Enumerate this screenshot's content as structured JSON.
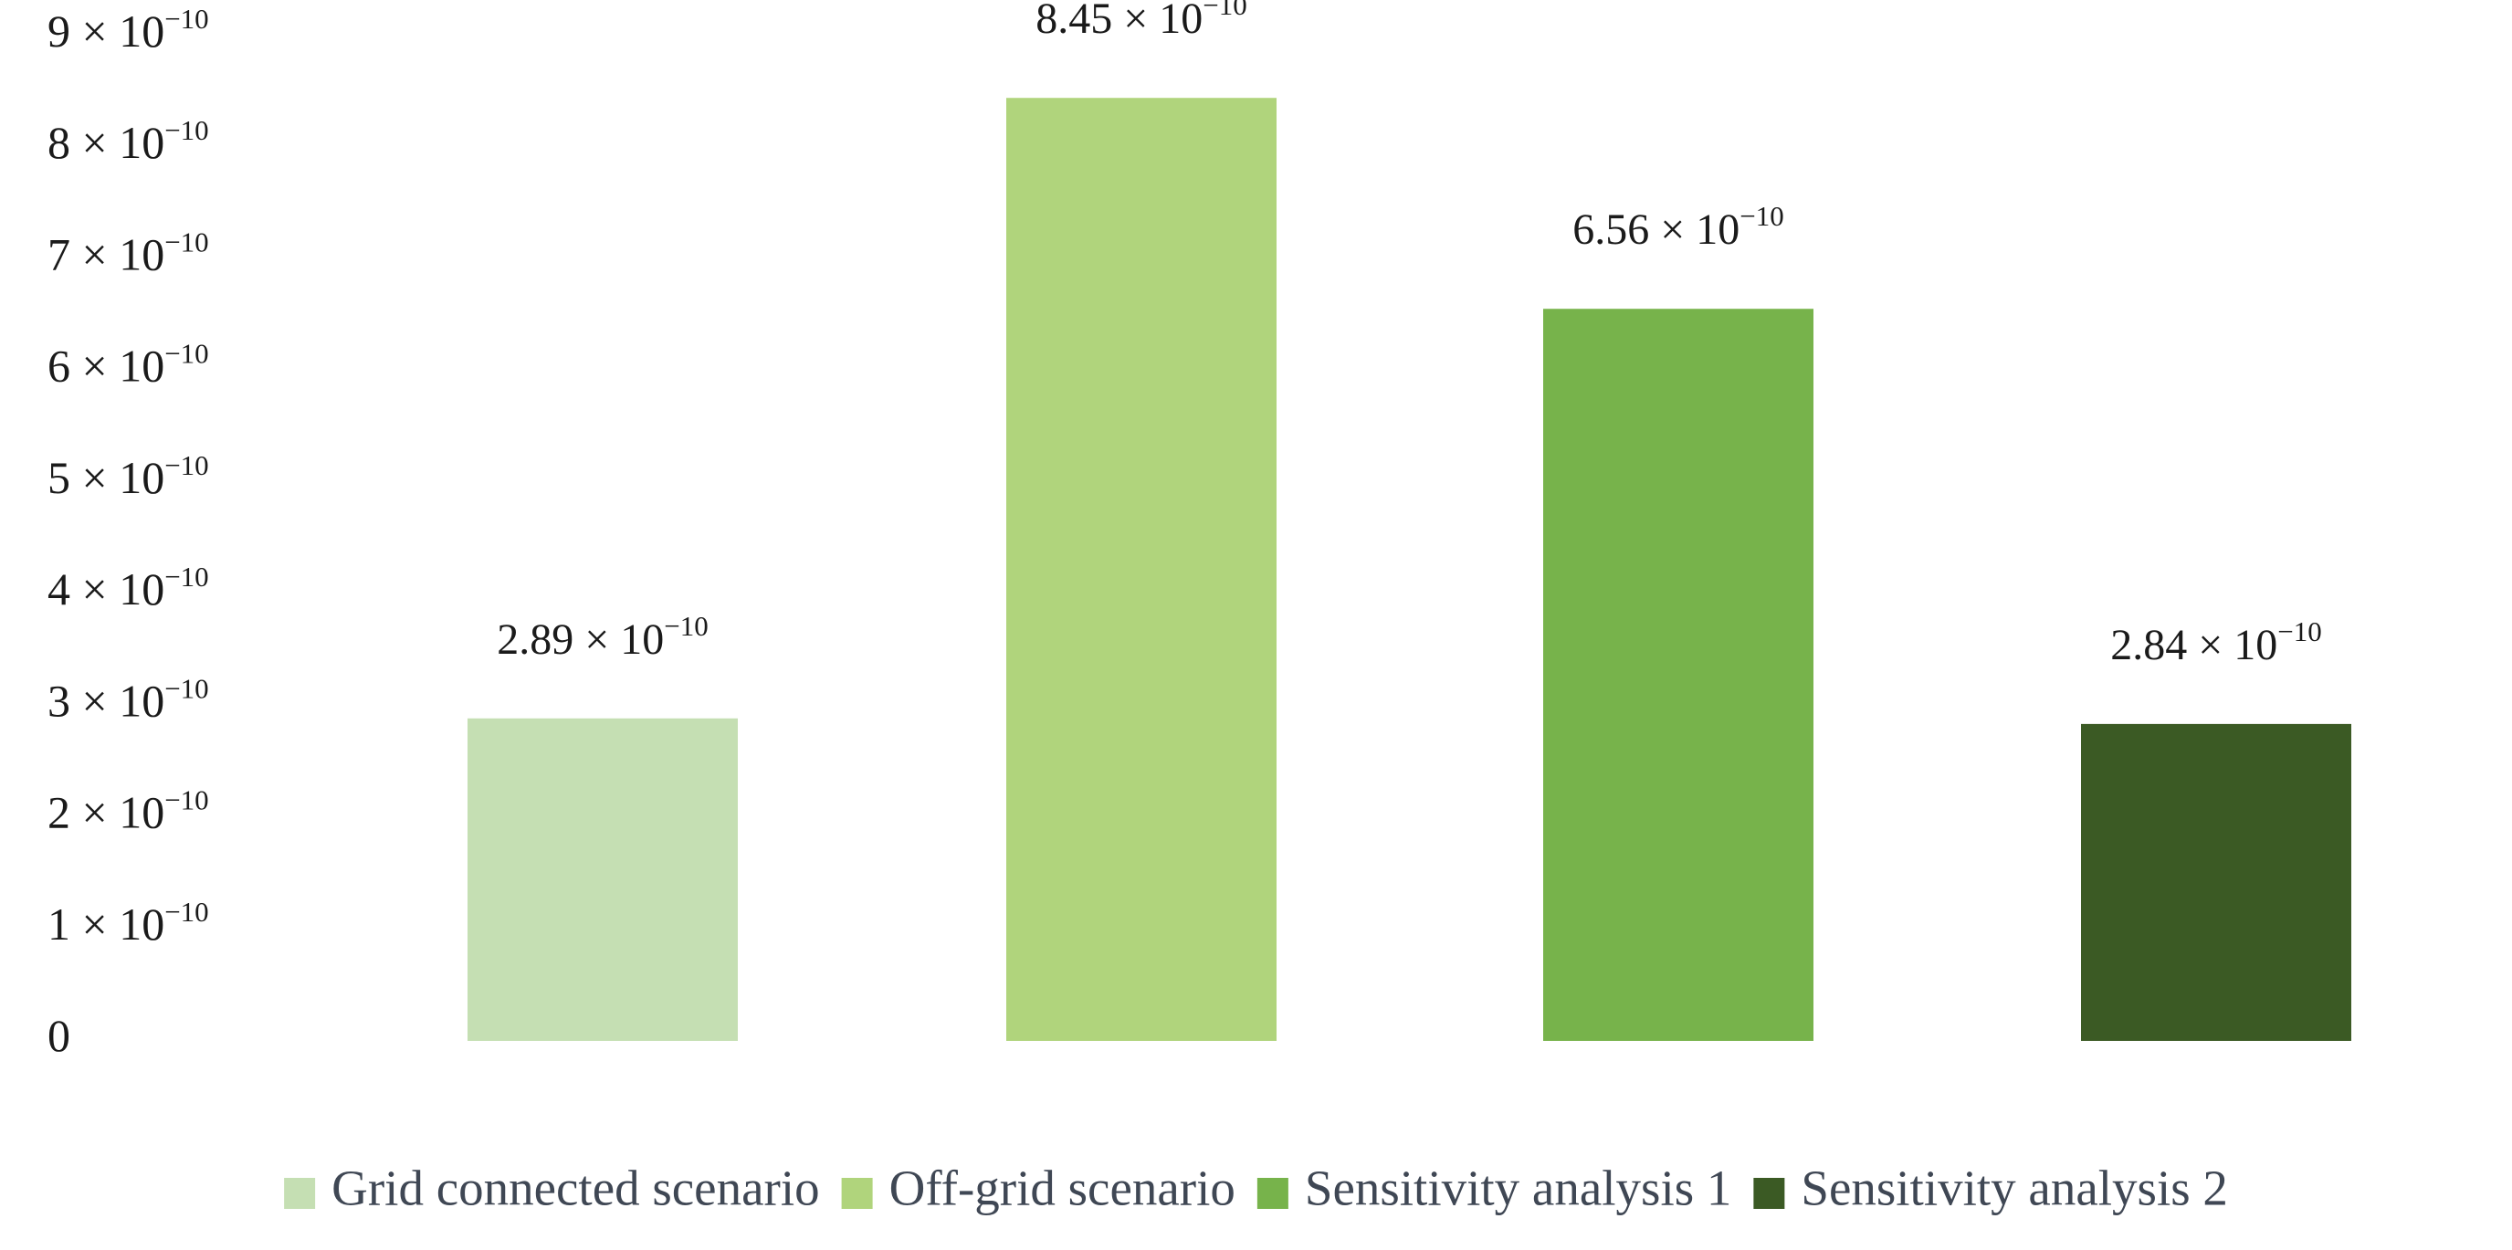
{
  "chart_data": {
    "type": "bar",
    "title": "",
    "xlabel": "",
    "ylabel": "",
    "ylim": [
      0,
      9e-10
    ],
    "y_ticks": [
      {
        "value": 0,
        "base": "0",
        "exponent": ""
      },
      {
        "value": 1e-10,
        "base": "1 × 10",
        "exponent": "−10"
      },
      {
        "value": 2e-10,
        "base": "2 × 10",
        "exponent": "−10"
      },
      {
        "value": 3e-10,
        "base": "3 × 10",
        "exponent": "−10"
      },
      {
        "value": 4e-10,
        "base": "4 × 10",
        "exponent": "−10"
      },
      {
        "value": 5e-10,
        "base": "5 × 10",
        "exponent": "−10"
      },
      {
        "value": 6e-10,
        "base": "6 × 10",
        "exponent": "−10"
      },
      {
        "value": 7e-10,
        "base": "7 × 10",
        "exponent": "−10"
      },
      {
        "value": 8e-10,
        "base": "8 × 10",
        "exponent": "−10"
      },
      {
        "value": 9e-10,
        "base": "9 × 10",
        "exponent": "−10"
      }
    ],
    "legend_position": "bottom",
    "grid": false,
    "series": [
      {
        "name": "Grid connected scenario",
        "value": 2.89e-10,
        "label_base": "2.89 × 10",
        "label_exponent": "−10",
        "color": "#c5dfb3"
      },
      {
        "name": "Off-grid scenario",
        "value": 8.45e-10,
        "label_base": "8.45 × 10",
        "label_exponent": "−10",
        "color": "#b0d47c"
      },
      {
        "name": "Sensitivity analysis 1",
        "value": 6.56e-10,
        "label_base": "6.56 × 10",
        "label_exponent": "−10",
        "color": "#77b34b"
      },
      {
        "name": "Sensitivity analysis 2",
        "value": 2.84e-10,
        "label_base": "2.84 × 10",
        "label_exponent": "−10",
        "color": "#3b5a24"
      }
    ]
  }
}
